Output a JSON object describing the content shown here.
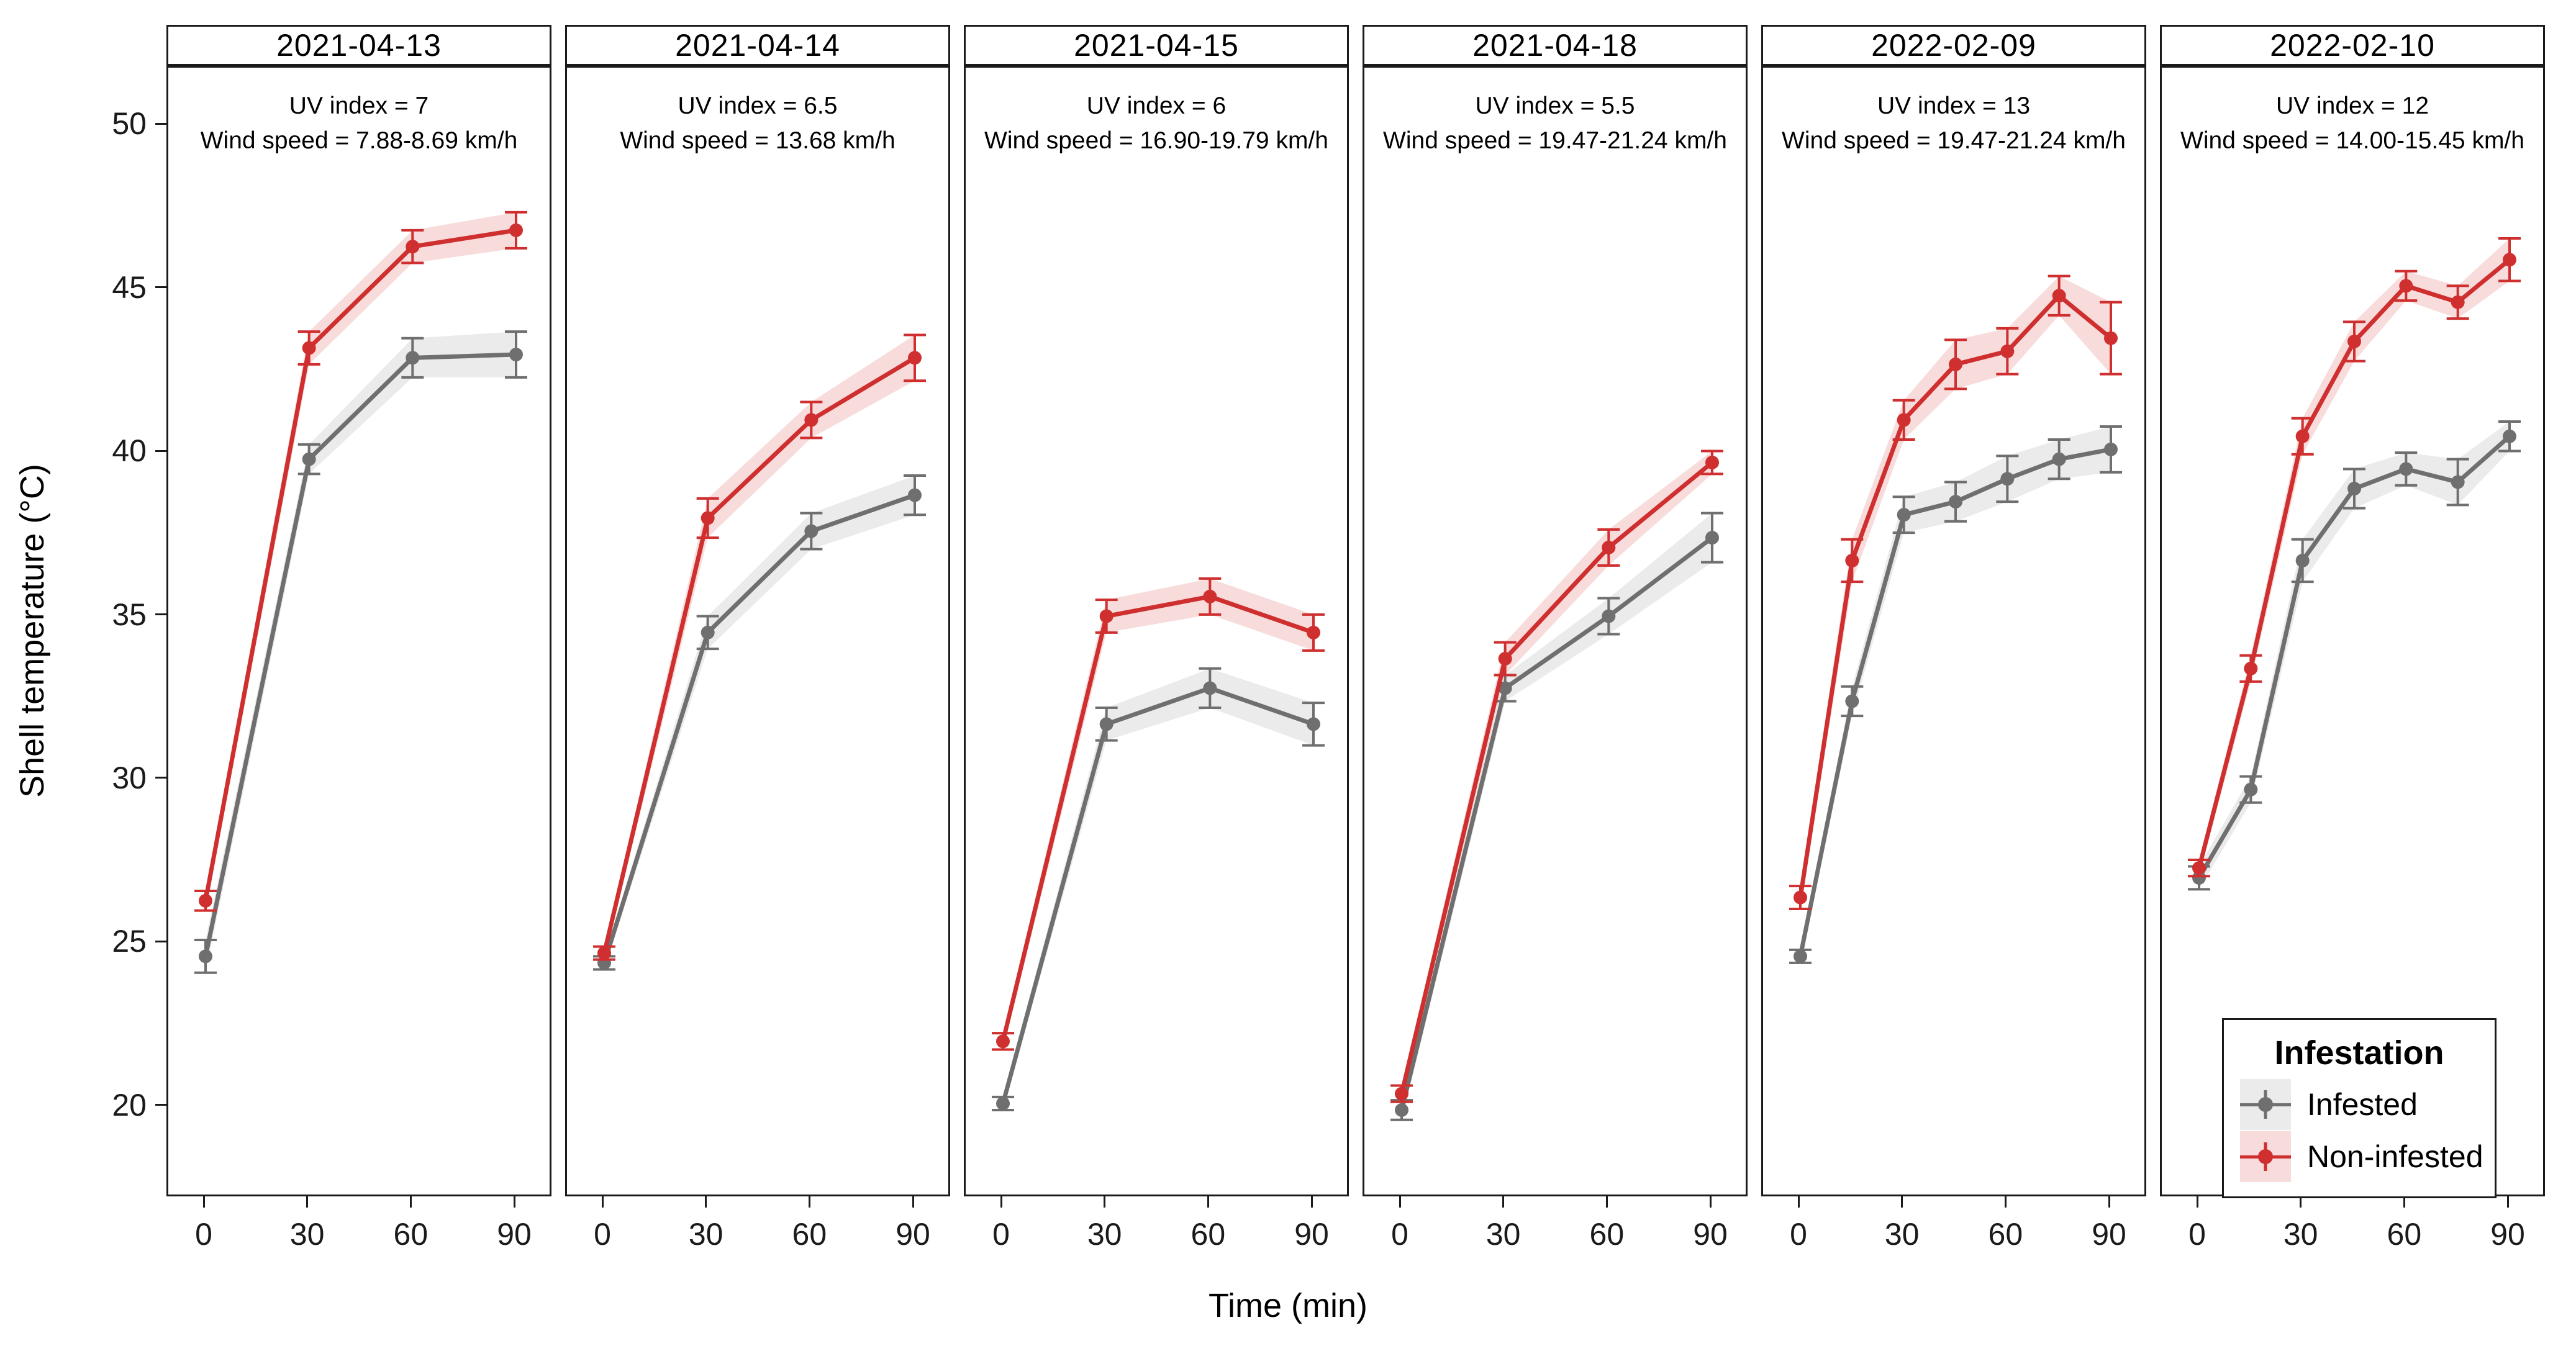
{
  "figure": {
    "y_axis": {
      "title": "Shell temperature (°C)",
      "tick_labels": [
        "50",
        "45",
        "40",
        "35",
        "30",
        "25",
        "20"
      ]
    },
    "x_axis": {
      "title": "Time (min)",
      "tick_labels": [
        "0",
        "30",
        "60",
        "90"
      ]
    },
    "legend": {
      "title": "Infestation",
      "items": [
        {
          "label": "Infested",
          "color": "#6f6f6f",
          "fill": "#ebebeb"
        },
        {
          "label": "Non-infested",
          "color": "#cf2f2f",
          "fill": "#f8dcdc"
        }
      ]
    }
  },
  "chart_data": {
    "type": "line",
    "title": "",
    "xlabel": "Time (min)",
    "ylabel": "Shell temperature (°C)",
    "ylim": [
      17.2,
      51.8
    ],
    "y_ticks": [
      20,
      25,
      30,
      35,
      40,
      45,
      50
    ],
    "x_ticks": [
      0,
      30,
      60,
      90
    ],
    "grid": "off",
    "legend_position": "inside-bottom-right-of-last-panel",
    "series_styles": {
      "infested": {
        "name": "Infested",
        "color": "#6f6f6f",
        "ribbon": "#ebebeb"
      },
      "non_infested": {
        "name": "Non-infested",
        "color": "#cf2f2f",
        "ribbon": "#f8dcdc"
      }
    },
    "panels": [
      {
        "date": "2021-04-13",
        "uv_text": "UV index = 7",
        "wind_text": "Wind speed = 7.88-8.69 km/h",
        "x": [
          0,
          30,
          60,
          90
        ],
        "infested": {
          "y": [
            24.6,
            39.8,
            42.9,
            43.0
          ],
          "se": [
            0.5,
            0.45,
            0.6,
            0.7
          ]
        },
        "non_infested": {
          "y": [
            26.3,
            43.2,
            46.3,
            46.8
          ],
          "se": [
            0.3,
            0.5,
            0.5,
            0.55
          ]
        }
      },
      {
        "date": "2021-04-14",
        "uv_text": "UV index = 6.5",
        "wind_text": "Wind speed = 13.68 km/h",
        "x": [
          0,
          30,
          60,
          90
        ],
        "infested": {
          "y": [
            24.4,
            34.5,
            37.6,
            38.7
          ],
          "se": [
            0.2,
            0.5,
            0.55,
            0.6
          ]
        },
        "non_infested": {
          "y": [
            24.7,
            38.0,
            41.0,
            42.9
          ],
          "se": [
            0.2,
            0.6,
            0.55,
            0.7
          ]
        }
      },
      {
        "date": "2021-04-15",
        "uv_text": "UV index = 6",
        "wind_text": "Wind speed = 16.90-19.79 km/h",
        "x": [
          0,
          30,
          60,
          90
        ],
        "infested": {
          "y": [
            20.1,
            31.7,
            32.8,
            31.7
          ],
          "se": [
            0.2,
            0.5,
            0.6,
            0.65
          ]
        },
        "non_infested": {
          "y": [
            22.0,
            35.0,
            35.6,
            34.5
          ],
          "se": [
            0.25,
            0.5,
            0.55,
            0.55
          ]
        }
      },
      {
        "date": "2021-04-18",
        "uv_text": "UV index = 5.5",
        "wind_text": "Wind speed = 19.47-21.24 km/h",
        "x": [
          0,
          30,
          60,
          90
        ],
        "infested": {
          "y": [
            19.9,
            32.8,
            35.0,
            37.4
          ],
          "se": [
            0.3,
            0.4,
            0.55,
            0.75
          ]
        },
        "non_infested": {
          "y": [
            20.4,
            33.7,
            37.1,
            39.7
          ],
          "se": [
            0.25,
            0.5,
            0.55,
            0.35
          ]
        }
      },
      {
        "date": "2022-02-09",
        "uv_text": "UV index = 13",
        "wind_text": "Wind speed = 19.47-21.24 km/h",
        "x": [
          0,
          15,
          30,
          45,
          60,
          75,
          90
        ],
        "infested": {
          "y": [
            24.6,
            32.4,
            38.1,
            38.5,
            39.2,
            39.8,
            40.1
          ],
          "se": [
            0.2,
            0.45,
            0.55,
            0.6,
            0.7,
            0.6,
            0.7
          ]
        },
        "non_infested": {
          "y": [
            26.4,
            36.7,
            41.0,
            42.7,
            43.1,
            44.8,
            43.5
          ],
          "se": [
            0.35,
            0.65,
            0.6,
            0.75,
            0.7,
            0.6,
            1.1
          ]
        }
      },
      {
        "date": "2022-02-10",
        "uv_text": "UV index = 12",
        "wind_text": "Wind speed = 14.00-15.45 km/h",
        "x": [
          0,
          15,
          30,
          45,
          60,
          75,
          90
        ],
        "infested": {
          "y": [
            27.0,
            29.7,
            36.7,
            38.9,
            39.5,
            39.1,
            40.5
          ],
          "se": [
            0.35,
            0.4,
            0.65,
            0.6,
            0.5,
            0.7,
            0.45
          ]
        },
        "non_infested": {
          "y": [
            27.3,
            33.4,
            40.5,
            43.4,
            45.1,
            44.6,
            45.9
          ],
          "se": [
            0.25,
            0.4,
            0.55,
            0.6,
            0.45,
            0.5,
            0.65
          ]
        }
      }
    ]
  }
}
